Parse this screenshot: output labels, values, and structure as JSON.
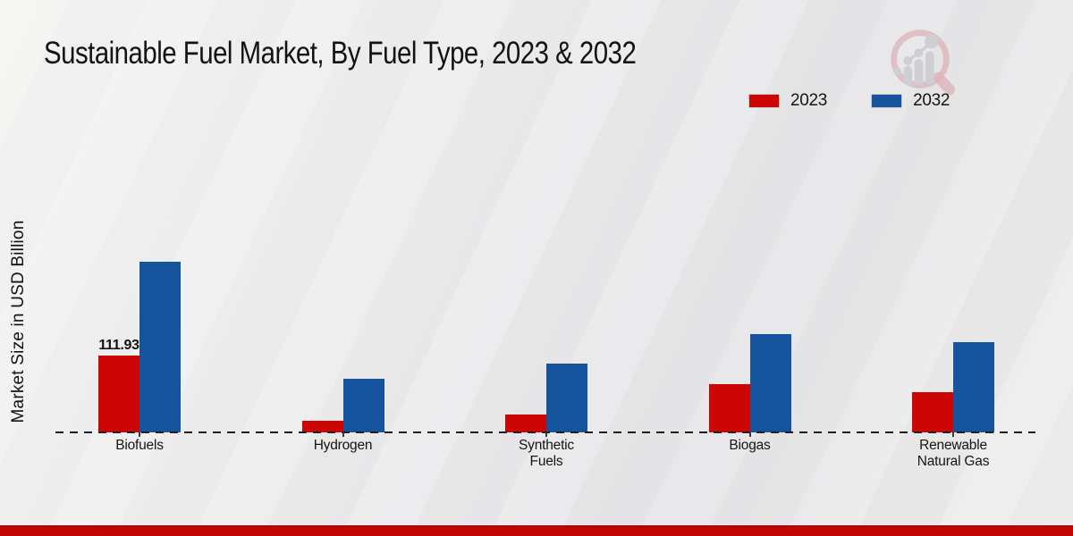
{
  "title": "Sustainable Fuel Market, By Fuel Type, 2023 & 2032",
  "ylabel": "Market Size in USD Billion",
  "footer_color": "#c00404",
  "logo_icon": "magnifier-bar-chart-watermark",
  "chart_data": {
    "type": "bar",
    "title": "Sustainable Fuel Market, By Fuel Type, 2023 & 2032",
    "categories": [
      "Biofuels",
      "Hydrogen",
      "Synthetic Fuels",
      "Biogas",
      "Renewable Natural Gas"
    ],
    "series": [
      {
        "name": "2023",
        "color": "#cc0505",
        "values": [
          111.93,
          17.3,
          26.1,
          70.6,
          59.0
        ]
      },
      {
        "name": "2032",
        "color": "#15549c",
        "values": [
          249.0,
          78.0,
          99.8,
          143.2,
          131.4
        ]
      }
    ],
    "xlabel": "",
    "ylabel": "Market Size in USD Billion",
    "ylim": [
      0,
      260
    ],
    "grid": false,
    "y_axis_ticks_visible": false,
    "legend_position": "upper-right",
    "baseline_style": "dashed",
    "data_labels": [
      {
        "series": "2023",
        "category": "Biofuels",
        "text": "111.93"
      }
    ]
  }
}
